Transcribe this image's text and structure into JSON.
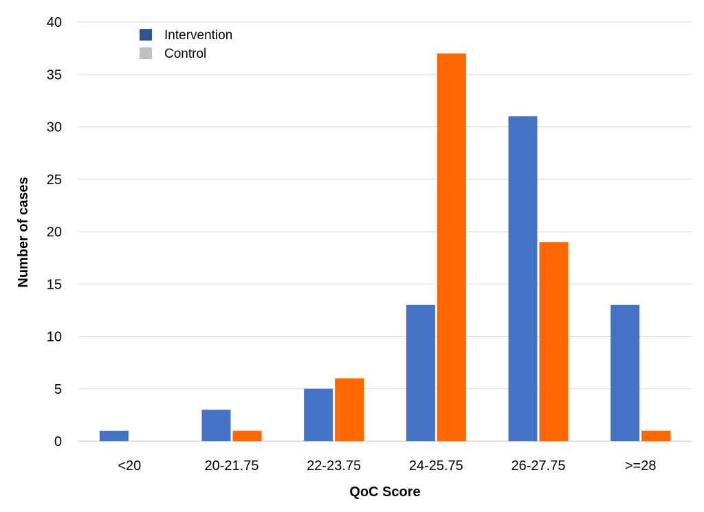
{
  "chart_data": {
    "type": "bar",
    "title": "",
    "xlabel": "QoC Score",
    "ylabel": "Number of cases",
    "categories": [
      "<20",
      "20-21.75",
      "22-23.75",
      "24-25.75",
      "26-27.75",
      ">=28"
    ],
    "series": [
      {
        "name": "Intervention",
        "color": "#4472C4",
        "legend_color": "#2F5597",
        "values": [
          1,
          3,
          5,
          13,
          31,
          13
        ]
      },
      {
        "name": "Control",
        "color": "#FF6600",
        "legend_color": "#BFBFBF",
        "values": [
          0,
          1,
          6,
          37,
          19,
          1
        ]
      }
    ],
    "ylim": [
      0,
      40
    ],
    "yticks": [
      0,
      5,
      10,
      15,
      20,
      25,
      30,
      35,
      40
    ],
    "grid": true,
    "legend": "top-left"
  }
}
